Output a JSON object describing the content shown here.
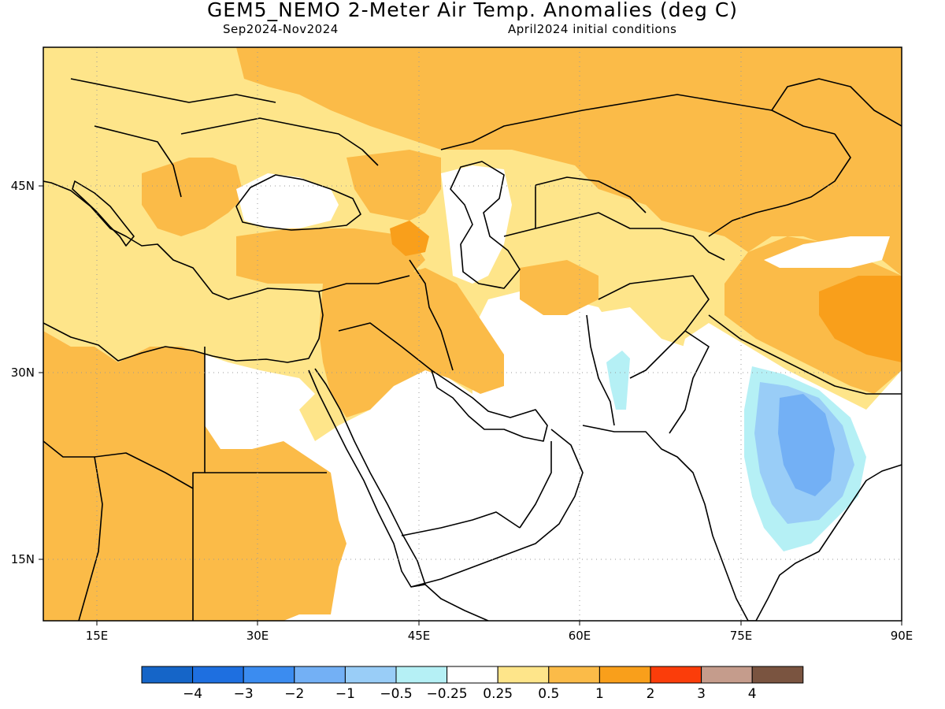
{
  "title": "GEM5_NEMO 2-Meter Air Temp. Anomalies (deg C)",
  "subtitle_left": "Sep2024-Nov2024",
  "subtitle_right": "April2024 initial conditions",
  "map": {
    "lon_range": [
      10,
      90
    ],
    "lat_range": [
      9,
      55
    ],
    "grid": true,
    "x_ticks": [
      "15E",
      "30E",
      "45E",
      "60E",
      "75E",
      "90E"
    ],
    "y_ticks": [
      "45N",
      "30N",
      "15N"
    ]
  },
  "colorbar": {
    "labels": [
      "−4",
      "−3",
      "−2",
      "−1",
      "−0.5",
      "−0.25",
      "0.25",
      "0.5",
      "1",
      "2",
      "3",
      "4"
    ],
    "colors": [
      "#1565c8",
      "#1e6fe0",
      "#3b8cf0",
      "#73b0f5",
      "#99cdf7",
      "#b5f0f5",
      "#ffffff",
      "#fee58a",
      "#fbbb48",
      "#f99f1b",
      "#fb3d0a",
      "#c59c8c",
      "#7a5440"
    ]
  }
}
